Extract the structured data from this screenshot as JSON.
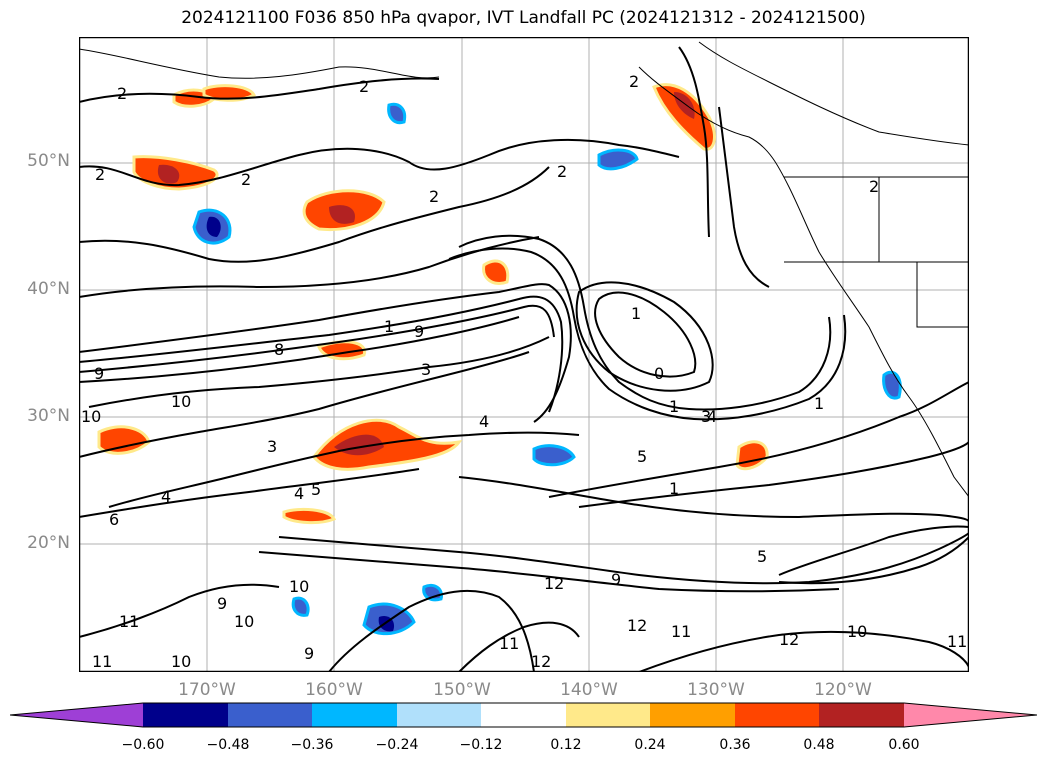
{
  "title": "2024121100 F036 850 hPa qvapor, IVT Landfall PC (2024121312 - 2024121500)",
  "lat_labels": [
    "50°N",
    "40°N",
    "30°N",
    "20°N"
  ],
  "lon_labels": [
    "170°W",
    "160°W",
    "150°W",
    "140°W",
    "130°W",
    "120°W"
  ],
  "contour_labels": [
    "2",
    "2",
    "2",
    "2",
    "2",
    "2",
    "2",
    "2",
    "1",
    "0",
    "1",
    "1",
    "1",
    "1",
    "9",
    "9",
    "8",
    "3",
    "3",
    "3",
    "10",
    "10",
    "10",
    "10",
    "10",
    "10",
    "4",
    "4",
    "4",
    "4",
    "5",
    "5",
    "6",
    "12",
    "12",
    "12",
    "11",
    "11",
    "11",
    "11",
    "9",
    "9",
    "9",
    "11",
    "12",
    "5"
  ],
  "colorbar": {
    "colors": [
      "#9e3fd6",
      "#00008b",
      "#3a5fcd",
      "#00b7ff",
      "#b0e0fb",
      "#ffffff",
      "#ffe98a",
      "#ff9f00",
      "#ff4500",
      "#b22222",
      "#ff88aa"
    ],
    "ticks": [
      "−0.60",
      "−0.48",
      "−0.36",
      "−0.24",
      "−0.12",
      "0.12",
      "0.24",
      "0.36",
      "0.48",
      "0.60"
    ]
  },
  "colors": {
    "land_line": "#000000",
    "grid": "#b0b0b0",
    "frame": "#000000"
  }
}
